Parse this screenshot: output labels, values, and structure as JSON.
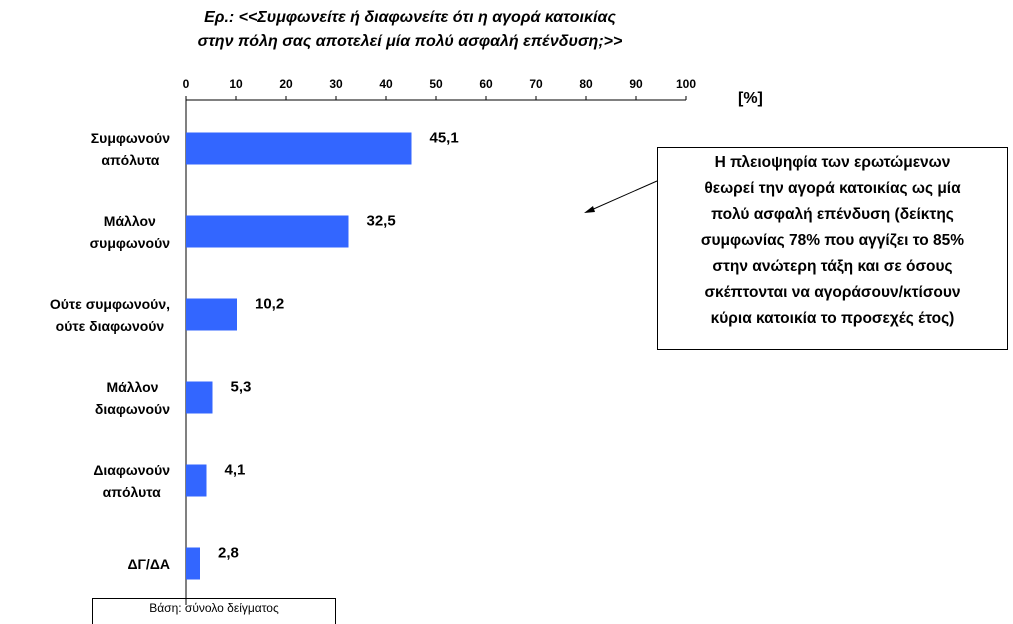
{
  "chart_data": {
    "type": "hbar",
    "title": "Ερ.: <<Συμφωνείτε ή διαφωνείτε ότι η αγορά κατοικίας\nστην πόλη σας αποτελεί μία πολύ ασφαλή επένδυση;>>",
    "categories": [
      "Συμφωνούν\nαπόλυτα",
      "Μάλλον\nσυμφωνούν",
      "Ούτε συμφωνούν,\nούτε διαφωνούν",
      "Μάλλον\nδιαφωνούν",
      "Διαφωνούν\nαπόλυτα",
      "ΔΓ/ΔΑ"
    ],
    "values": [
      45.1,
      32.5,
      10.2,
      5.3,
      4.1,
      2.8
    ],
    "value_labels": [
      "45,1",
      "32,5",
      "10,2",
      "5,3",
      "4,1",
      "2,8"
    ],
    "color": "#3366ff",
    "xlim": [
      0,
      100
    ],
    "xticks": [
      0,
      10,
      20,
      30,
      40,
      50,
      60,
      70,
      80,
      90,
      100
    ],
    "x_label": "[%]",
    "annotation": "Η πλειοψηφία των ερωτώμενων\nθεωρεί την αγορά κατοικίας ως μία\nπολύ ασφαλή επένδυση (δείκτης\nσυμφωνίας 78% που αγγίζει το 85%\nστην ανώτερη τάξη και σε όσους\nσκέπτονται να αγοράσουν/κτίσουν\nκύρια κατοικία το προσεχές έτος)",
    "note": "Βάση: σύνολο δείγματος"
  }
}
